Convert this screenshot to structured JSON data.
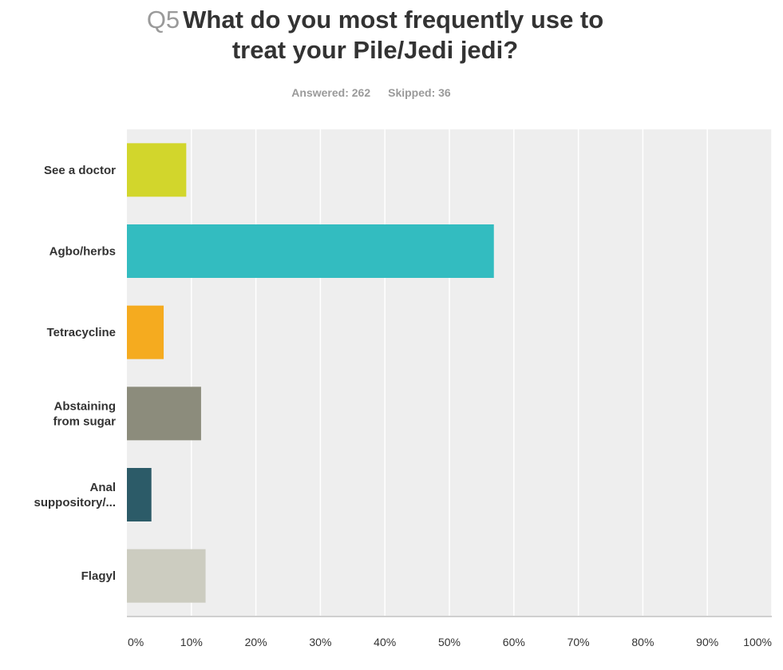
{
  "header": {
    "question_number": "Q5",
    "title_line1": "What do you most frequently use to",
    "title_line2": "treat your Pile/Jedi jedi?",
    "answered": "Answered: 262",
    "skipped": "Skipped: 36"
  },
  "chart_data": {
    "type": "bar",
    "orientation": "horizontal",
    "categories": [
      [
        "See a doctor"
      ],
      [
        "Agbo/herbs"
      ],
      [
        "Tetracycline"
      ],
      [
        "Abstaining",
        "from sugar"
      ],
      [
        "Anal",
        "suppository/..."
      ],
      [
        "Flagyl"
      ]
    ],
    "values": [
      9.2,
      56.9,
      5.7,
      11.5,
      3.8,
      12.2
    ],
    "colors": [
      "#d2d62c",
      "#33bcc0",
      "#f5ab1f",
      "#8c8c7c",
      "#2c5b68",
      "#ccccc0"
    ],
    "xlim": [
      0,
      100
    ],
    "x_ticks": [
      "0%",
      "10%",
      "20%",
      "30%",
      "40%",
      "50%",
      "60%",
      "70%",
      "80%",
      "90%",
      "100%"
    ],
    "grid": true,
    "legend": "none"
  }
}
